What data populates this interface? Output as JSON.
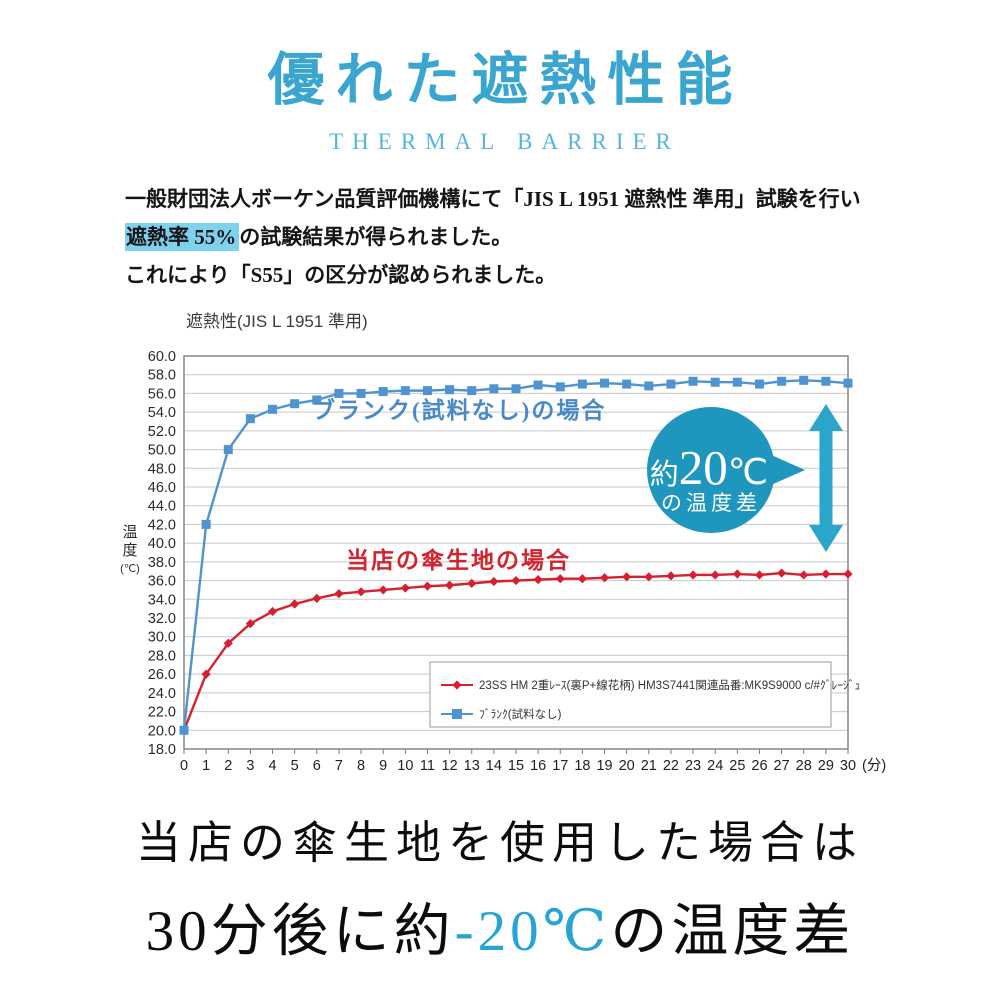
{
  "header": {
    "title": "優れた遮熱性能",
    "subtitle": "THERMAL BARRIER",
    "title_color": "#3aa6d0",
    "subtitle_color": "#55b6da"
  },
  "intro": {
    "line1": "一般財団法人ボーケン品質評価機構にて「JIS L 1951 遮熱性 準用」試験を行い",
    "line2_highlight": "遮熱率 55%",
    "line2_rest": "の試験結果が得られました。",
    "line3": "これにより「S55」の区分が認められました。",
    "highlight_color": "#7fd2ee"
  },
  "chart_data": {
    "type": "line",
    "title": "遮熱性(JIS L 1951 準用)",
    "ylabel": "温度(℃)",
    "xlabel_unit": "(分)",
    "ylim": [
      18.0,
      60.0
    ],
    "ytick_step": 2.0,
    "grid": true,
    "legend_position": "inside-bottom-right",
    "x": [
      0,
      1,
      2,
      3,
      4,
      5,
      6,
      7,
      8,
      9,
      10,
      11,
      12,
      13,
      14,
      15,
      16,
      17,
      18,
      19,
      20,
      21,
      22,
      23,
      24,
      25,
      26,
      27,
      28,
      29,
      30
    ],
    "series": [
      {
        "name": "23SS HM 2重ﾚｰｽ(裏P+線花柄) HM3S7441関連品番:MK9S9000 c/#ｸﾞﾚｰｼﾞｭ",
        "color": "#d6202f",
        "marker": "diamond",
        "values": [
          20.0,
          26.0,
          29.3,
          31.4,
          32.7,
          33.5,
          34.1,
          34.6,
          34.8,
          35.0,
          35.2,
          35.4,
          35.5,
          35.7,
          35.9,
          36.0,
          36.1,
          36.2,
          36.2,
          36.3,
          36.4,
          36.4,
          36.5,
          36.6,
          36.6,
          36.7,
          36.6,
          36.8,
          36.6,
          36.7,
          36.7
        ]
      },
      {
        "name": "ﾌﾞﾗﾝｸ(試料なし)",
        "color": "#4f94d0",
        "marker": "square",
        "values": [
          20.0,
          42.0,
          50.0,
          53.3,
          54.3,
          54.9,
          55.3,
          56.0,
          56.0,
          56.2,
          56.3,
          56.3,
          56.4,
          56.3,
          56.5,
          56.5,
          56.9,
          56.7,
          57.0,
          57.1,
          57.0,
          56.8,
          57.0,
          57.3,
          57.2,
          57.2,
          57.0,
          57.3,
          57.4,
          57.3,
          57.1
        ]
      }
    ],
    "inline_labels": [
      {
        "text": "ブランク(試料なし)の場合",
        "color": "#4789c9"
      },
      {
        "text": "当店の傘生地の場合",
        "color": "#d2232e"
      }
    ],
    "annotation": {
      "big_prefix": "約",
      "big_value": "20",
      "big_unit": "℃",
      "sub": "の温度差",
      "bubble_color": "#1e96bd",
      "arrow_color": "#2ba5cc"
    }
  },
  "footer": {
    "line1": "当店の傘生地を使用した場合は",
    "line2_prefix": "30分後に約",
    "line2_highlight": "-20℃",
    "line2_suffix": "の温度差",
    "highlight_color": "#28a3d6"
  }
}
